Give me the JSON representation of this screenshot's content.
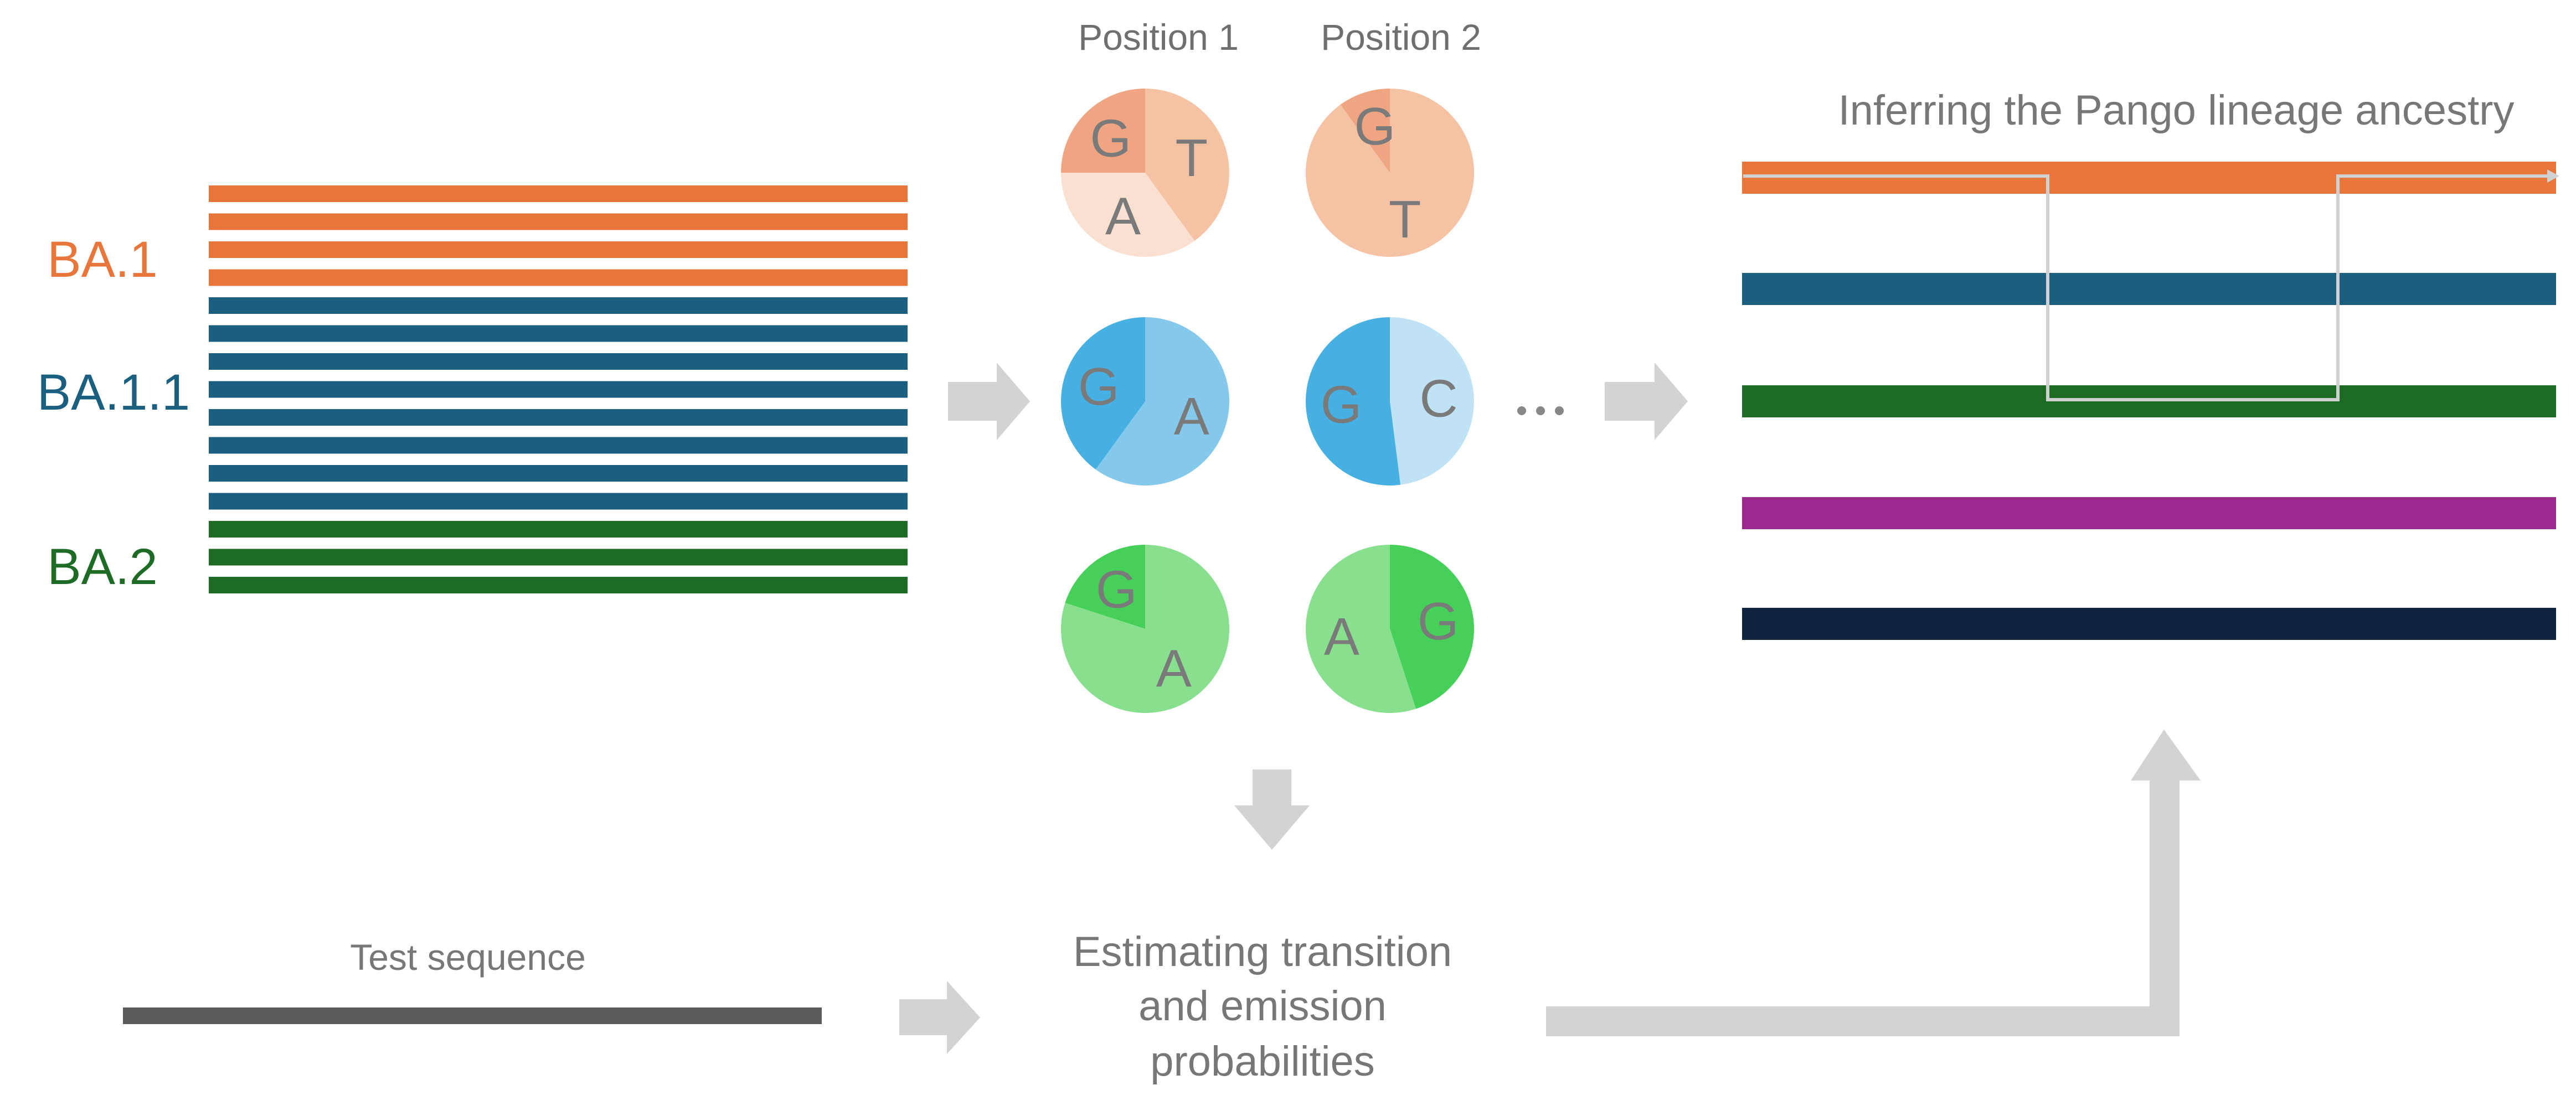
{
  "lineages": [
    {
      "label": "BA.1",
      "color": "#E8763A",
      "bar_count": 4
    },
    {
      "label": "BA.1.1",
      "color": "#1A5E80",
      "bar_count": 8
    },
    {
      "label": "BA.2",
      "color": "#1E6B26",
      "bar_count": 3
    }
  ],
  "positions": {
    "labels": [
      "Position 1",
      "Position 2"
    ],
    "ellipsis": "…"
  },
  "pies": [
    {
      "id": "ba1-pos1",
      "slices": [
        {
          "letter": "T",
          "fraction": 0.4,
          "color": "#F6C2A4"
        },
        {
          "letter": "A",
          "fraction": 0.35,
          "color": "#FAE0D0"
        },
        {
          "letter": "G",
          "fraction": 0.25,
          "color": "#EFA582"
        }
      ]
    },
    {
      "id": "ba1-pos2",
      "slices": [
        {
          "letter": "T",
          "fraction": 0.9,
          "color": "#F6C2A4"
        },
        {
          "letter": "G",
          "fraction": 0.1,
          "color": "#EFA582"
        }
      ]
    },
    {
      "id": "ba11-pos1",
      "slices": [
        {
          "letter": "A",
          "fraction": 0.6,
          "color": "#84C9EC"
        },
        {
          "letter": "G",
          "fraction": 0.4,
          "color": "#46B0E2"
        }
      ]
    },
    {
      "id": "ba11-pos2",
      "slices": [
        {
          "letter": "C",
          "fraction": 0.48,
          "color": "#BFE3F5"
        },
        {
          "letter": "G",
          "fraction": 0.52,
          "color": "#46B0E2"
        }
      ]
    },
    {
      "id": "ba2-pos1",
      "slices": [
        {
          "letter": "A",
          "fraction": 0.8,
          "color": "#88E08F"
        },
        {
          "letter": "G",
          "fraction": 0.2,
          "color": "#46D05A"
        }
      ]
    },
    {
      "id": "ba2-pos2",
      "slices": [
        {
          "letter": "G",
          "fraction": 0.45,
          "color": "#46D05A"
        },
        {
          "letter": "A",
          "fraction": 0.55,
          "color": "#88E08F"
        }
      ]
    }
  ],
  "ancestry": {
    "title": "Inferring the Pango lineage ancestry",
    "bar_colors": [
      "#E8763A",
      "#1A5E80",
      "#1E6B26",
      "#9C2A8E",
      "#0E2440"
    ]
  },
  "test_sequence": {
    "label": "Test sequence",
    "color": "#5a5a5a"
  },
  "estimation": {
    "lines": [
      "Estimating transition",
      "and emission",
      "probabilities"
    ]
  },
  "arrow_color": "#D3D3D3"
}
